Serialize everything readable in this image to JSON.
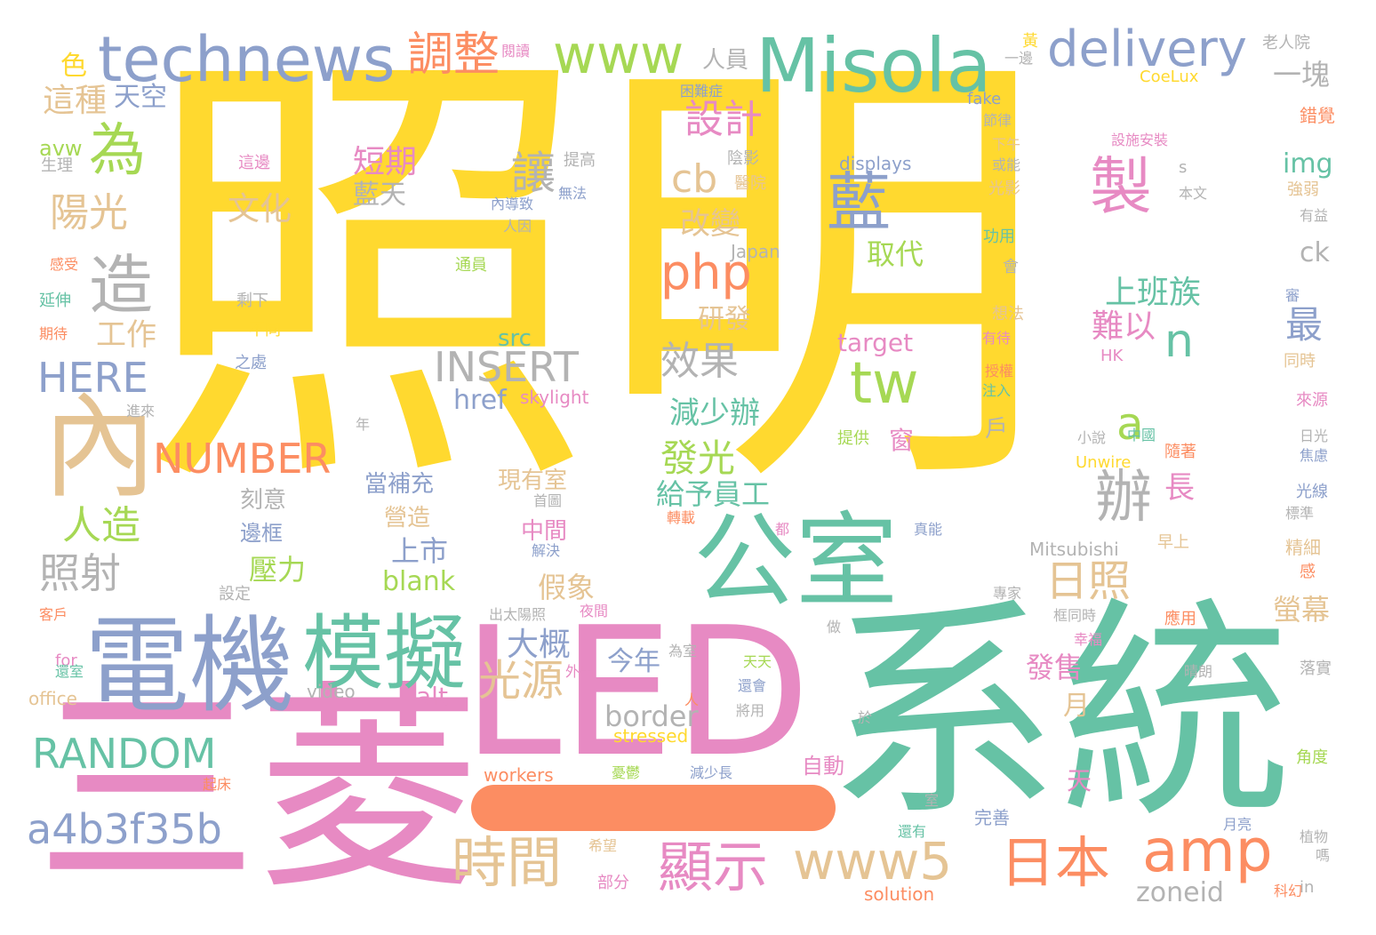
{
  "palette": {
    "yellow": "#FFD92F",
    "teal": "#66C2A5",
    "pink": "#E78AC3",
    "blue": "#8DA0CB",
    "green": "#A6D854",
    "orange": "#FC8D62",
    "tan": "#E5C494",
    "gray": "#B3B3B3"
  },
  "words": [
    {
      "text": "照明",
      "color": "yellow"
    },
    {
      "text": "系統",
      "color": "teal"
    },
    {
      "text": "LED",
      "color": "pink"
    },
    {
      "text": "三菱",
      "color": "pink"
    },
    {
      "text": "電機",
      "color": "blue"
    },
    {
      "text": "公室",
      "color": "teal"
    },
    {
      "text": "模擬",
      "color": "teal"
    },
    {
      "text": "內",
      "color": "tan"
    },
    {
      "text": "Misola",
      "color": "teal"
    },
    {
      "text": "technews",
      "color": "blue"
    },
    {
      "text": "www",
      "color": "green"
    },
    {
      "text": "delivery",
      "color": "blue"
    },
    {
      "text": "調整",
      "color": "orange"
    },
    {
      "text": "藍",
      "color": "blue"
    },
    {
      "text": "製",
      "color": "pink"
    },
    {
      "text": "amp",
      "color": "orange"
    },
    {
      "text": "www5",
      "color": "tan"
    },
    {
      "text": "日本",
      "color": "orange"
    },
    {
      "text": "時間",
      "color": "tan"
    },
    {
      "text": "顯示",
      "color": "pink"
    },
    {
      "text": "a4b3f35b",
      "color": "blue"
    },
    {
      "text": "RANDOM",
      "color": "teal"
    },
    {
      "text": "NUMBER",
      "color": "orange"
    },
    {
      "text": "INSERT",
      "color": "gray"
    },
    {
      "text": "tw",
      "color": "green"
    },
    {
      "text": "php",
      "color": "orange"
    },
    {
      "text": "辦",
      "color": "gray"
    },
    {
      "text": "為",
      "color": "green"
    },
    {
      "text": "造",
      "color": "gray"
    },
    {
      "text": "a",
      "color": "green"
    },
    {
      "text": "n",
      "color": "teal"
    },
    {
      "text": "陽光",
      "color": "tan"
    },
    {
      "text": "人造",
      "color": "green"
    },
    {
      "text": "照射",
      "color": "gray"
    },
    {
      "text": "HERE",
      "color": "blue"
    },
    {
      "text": "光源",
      "color": "tan"
    },
    {
      "text": "日照",
      "color": "tan"
    },
    {
      "text": "發光",
      "color": "green"
    },
    {
      "text": "效果",
      "color": "gray"
    },
    {
      "text": "設計",
      "color": "pink"
    },
    {
      "text": "讓",
      "color": "gray"
    },
    {
      "text": "cb",
      "color": "tan"
    },
    {
      "text": "最",
      "color": "blue"
    },
    {
      "text": "上班族",
      "color": "teal"
    },
    {
      "text": "難以",
      "color": "pink"
    },
    {
      "text": "這種",
      "color": "tan"
    },
    {
      "text": "天空",
      "color": "blue"
    },
    {
      "text": "工作",
      "color": "tan"
    },
    {
      "text": "文化",
      "color": "tan"
    },
    {
      "text": "短期",
      "color": "pink"
    },
    {
      "text": "藍天",
      "color": "gray"
    },
    {
      "text": "改變",
      "color": "tan"
    },
    {
      "text": "研發",
      "color": "tan"
    },
    {
      "text": "取代",
      "color": "green"
    },
    {
      "text": "減少辦",
      "color": "teal"
    },
    {
      "text": "給予員工",
      "color": "teal"
    },
    {
      "text": "長",
      "color": "pink"
    },
    {
      "text": "大概",
      "color": "blue"
    },
    {
      "text": "今年",
      "color": "blue"
    },
    {
      "text": "發售",
      "color": "pink"
    },
    {
      "text": "上市",
      "color": "blue"
    },
    {
      "text": "壓力",
      "color": "green"
    },
    {
      "text": "blank",
      "color": "green"
    },
    {
      "text": "alt",
      "color": "pink"
    },
    {
      "text": "border",
      "color": "gray"
    },
    {
      "text": "zoneid",
      "color": "gray"
    },
    {
      "text": "src",
      "color": "teal"
    },
    {
      "text": "href",
      "color": "blue"
    },
    {
      "text": "target",
      "color": "pink"
    },
    {
      "text": "img",
      "color": "teal"
    },
    {
      "text": "ck",
      "color": "gray"
    },
    {
      "text": "一塊",
      "color": "gray"
    },
    {
      "text": "人員",
      "color": "gray"
    },
    {
      "text": "螢幕",
      "color": "tan"
    },
    {
      "text": "月",
      "color": "tan"
    },
    {
      "text": "天",
      "color": "pink"
    },
    {
      "text": "假象",
      "color": "tan"
    },
    {
      "text": "營造",
      "color": "tan"
    },
    {
      "text": "當補充",
      "color": "blue"
    },
    {
      "text": "刻意",
      "color": "gray"
    },
    {
      "text": "邊框",
      "color": "blue"
    },
    {
      "text": "現有室",
      "color": "tan"
    },
    {
      "text": "中間",
      "color": "pink"
    },
    {
      "text": "色",
      "color": "yellow"
    },
    {
      "text": "avw",
      "color": "green"
    },
    {
      "text": "生理",
      "color": "gray"
    },
    {
      "text": "窗",
      "color": "pink"
    },
    {
      "text": "戶",
      "color": "gray"
    },
    {
      "text": "自動",
      "color": "pink"
    },
    {
      "text": "完善",
      "color": "blue"
    },
    {
      "text": "workers",
      "color": "orange"
    },
    {
      "text": "stressed",
      "color": "yellow"
    },
    {
      "text": "office",
      "color": "tan"
    },
    {
      "text": "video",
      "color": "gray"
    },
    {
      "text": "solution",
      "color": "orange"
    },
    {
      "text": "Mitsubishi",
      "color": "gray"
    },
    {
      "text": "Unwire",
      "color": "yellow"
    },
    {
      "text": "CoeLux",
      "color": "yellow"
    },
    {
      "text": "skylight",
      "color": "pink"
    },
    {
      "text": "Japan",
      "color": "gray"
    },
    {
      "text": "displays",
      "color": "blue"
    },
    {
      "text": "fake",
      "color": "blue"
    },
    {
      "text": "HK",
      "color": "pink"
    },
    {
      "text": "for",
      "color": "pink"
    },
    {
      "text": "in",
      "color": "gray"
    },
    {
      "text": "s",
      "color": "gray"
    },
    {
      "text": "黃",
      "color": "yellow"
    },
    {
      "text": "一邊",
      "color": "gray"
    },
    {
      "text": "閱讀",
      "color": "pink"
    },
    {
      "text": "老人院",
      "color": "gray"
    },
    {
      "text": "困難症",
      "color": "blue"
    },
    {
      "text": "節律",
      "color": "gray"
    },
    {
      "text": "錯覺",
      "color": "orange"
    },
    {
      "text": "設施安裝",
      "color": "pink"
    },
    {
      "text": "下午",
      "color": "tan"
    },
    {
      "text": "或能",
      "color": "gray"
    },
    {
      "text": "光影",
      "color": "tan"
    },
    {
      "text": "本文",
      "color": "gray"
    },
    {
      "text": "強弱",
      "color": "tan"
    },
    {
      "text": "有益",
      "color": "gray"
    },
    {
      "text": "提高",
      "color": "gray"
    },
    {
      "text": "陰影",
      "color": "gray"
    },
    {
      "text": "醫院",
      "color": "tan"
    },
    {
      "text": "內導致",
      "color": "blue"
    },
    {
      "text": "無法",
      "color": "blue"
    },
    {
      "text": "人因",
      "color": "gray"
    },
    {
      "text": "這邊",
      "color": "pink"
    },
    {
      "text": "功用",
      "color": "teal"
    },
    {
      "text": "通員",
      "color": "green"
    },
    {
      "text": "會",
      "color": "gray"
    },
    {
      "text": "感受",
      "color": "orange"
    },
    {
      "text": "延伸",
      "color": "teal"
    },
    {
      "text": "期待",
      "color": "orange"
    },
    {
      "text": "剩下",
      "color": "gray"
    },
    {
      "text": "不同",
      "color": "yellow"
    },
    {
      "text": "之處",
      "color": "blue"
    },
    {
      "text": "想法",
      "color": "tan"
    },
    {
      "text": "有待",
      "color": "pink"
    },
    {
      "text": "授權",
      "color": "orange"
    },
    {
      "text": "注入",
      "color": "teal"
    },
    {
      "text": "審",
      "color": "blue"
    },
    {
      "text": "同時",
      "color": "tan"
    },
    {
      "text": "來源",
      "color": "pink"
    },
    {
      "text": "日光",
      "color": "gray"
    },
    {
      "text": "焦慮",
      "color": "blue"
    },
    {
      "text": "進來",
      "color": "gray"
    },
    {
      "text": "年",
      "color": "gray"
    },
    {
      "text": "小說",
      "color": "gray"
    },
    {
      "text": "中國",
      "color": "teal"
    },
    {
      "text": "隨著",
      "color": "orange"
    },
    {
      "text": "提供",
      "color": "green"
    },
    {
      "text": "光線",
      "color": "blue"
    },
    {
      "text": "標準",
      "color": "gray"
    },
    {
      "text": "首圖",
      "color": "gray"
    },
    {
      "text": "解決",
      "color": "blue"
    },
    {
      "text": "都",
      "color": "pink"
    },
    {
      "text": "轉載",
      "color": "orange"
    },
    {
      "text": "真能",
      "color": "blue"
    },
    {
      "text": "早上",
      "color": "tan"
    },
    {
      "text": "精細",
      "color": "tan"
    },
    {
      "text": "設定",
      "color": "gray"
    },
    {
      "text": "夜間",
      "color": "pink"
    },
    {
      "text": "出太陽照",
      "color": "gray"
    },
    {
      "text": "專家",
      "color": "gray"
    },
    {
      "text": "框同時",
      "color": "gray"
    },
    {
      "text": "幸福",
      "color": "pink"
    },
    {
      "text": "應用",
      "color": "orange"
    },
    {
      "text": "感",
      "color": "orange"
    },
    {
      "text": "客戶",
      "color": "orange"
    },
    {
      "text": "做",
      "color": "gray"
    },
    {
      "text": "天天",
      "color": "green"
    },
    {
      "text": "為室",
      "color": "gray"
    },
    {
      "text": "還室",
      "color": "teal"
    },
    {
      "text": "外出",
      "color": "pink"
    },
    {
      "text": "人",
      "color": "orange"
    },
    {
      "text": "晴朗",
      "color": "gray"
    },
    {
      "text": "還會",
      "color": "blue"
    },
    {
      "text": "將用",
      "color": "gray"
    },
    {
      "text": "於",
      "color": "gray"
    },
    {
      "text": "落實",
      "color": "gray"
    },
    {
      "text": "角度",
      "color": "green"
    },
    {
      "text": "起床",
      "color": "orange"
    },
    {
      "text": "憂鬱",
      "color": "green"
    },
    {
      "text": "減少長",
      "color": "blue"
    },
    {
      "text": "室",
      "color": "gray"
    },
    {
      "text": "還有",
      "color": "teal"
    },
    {
      "text": "月亮",
      "color": "blue"
    },
    {
      "text": "希望",
      "color": "tan"
    },
    {
      "text": "植物",
      "color": "gray"
    },
    {
      "text": "嗎",
      "color": "gray"
    },
    {
      "text": "部分",
      "color": "pink"
    },
    {
      "text": "科幻",
      "color": "orange"
    }
  ]
}
